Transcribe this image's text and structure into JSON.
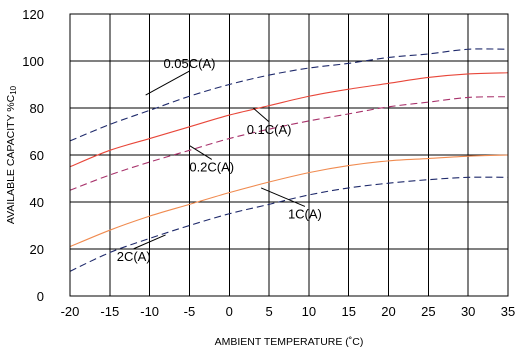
{
  "chart_data": {
    "type": "line",
    "xlabel": "AMBIENT TEMPERATURE (˚C)",
    "ylabel": "AVAILABLE CAPACITY %C",
    "ylabel_subscript": "10",
    "xlim": [
      -20,
      35
    ],
    "ylim": [
      0,
      120
    ],
    "grid": true,
    "x_ticks": [
      -20,
      -15,
      -10,
      -5,
      0,
      5,
      10,
      15,
      20,
      25,
      30,
      35
    ],
    "y_ticks": [
      0,
      20,
      40,
      60,
      80,
      100,
      120
    ],
    "x_tick_labels": [
      "-20",
      "-15",
      "-10",
      "-5",
      "0",
      "5",
      "10",
      "15",
      "20",
      "25",
      "30",
      "35"
    ],
    "y_tick_labels": [
      "0",
      "20",
      "40",
      "60",
      "80",
      "100",
      "120"
    ],
    "x": [
      -20,
      -15,
      -10,
      -5,
      0,
      5,
      10,
      15,
      20,
      25,
      30,
      35
    ],
    "series": [
      {
        "name": "0.05C(A)",
        "color": "#1f2a6b",
        "dash": "dashed",
        "label_at": [
          -5,
          97
        ],
        "anchor": [
          -10.5,
          85.5
        ],
        "values": [
          66,
          73,
          79,
          85,
          90,
          94,
          97,
          99,
          101.5,
          103,
          105,
          105
        ]
      },
      {
        "name": "0.1C(A)",
        "color": "#e8473a",
        "dash": "solid",
        "label_at": [
          5,
          69
        ],
        "anchor": [
          3,
          80
        ],
        "values": [
          55,
          62,
          67,
          72,
          77,
          81,
          85,
          88,
          90.5,
          93,
          94.5,
          95
        ]
      },
      {
        "name": "0.2C(A)",
        "color": "#a8326b",
        "dash": "dashed",
        "label_at": [
          -2.2,
          53
        ],
        "anchor": [
          -5,
          64
        ],
        "values": [
          45,
          51.5,
          57,
          62,
          67,
          71,
          74.5,
          77.5,
          80.5,
          82.5,
          84.5,
          84.8
        ]
      },
      {
        "name": "1C(A)",
        "color": "#f08b50",
        "dash": "solid",
        "label_at": [
          9.5,
          33
        ],
        "anchor": [
          4,
          46
        ],
        "values": [
          21,
          28,
          34,
          39,
          44,
          48.5,
          52.5,
          55.5,
          57.5,
          58.5,
          59.5,
          60
        ]
      },
      {
        "name": "2C(A)",
        "color": "#1f2a6b",
        "dash": "dashed",
        "label_at": [
          -12,
          15
        ],
        "anchor": [
          -8,
          26
        ],
        "values": [
          10.5,
          18.5,
          24.5,
          30,
          35,
          39,
          43,
          46,
          48,
          49.5,
          50.5,
          50.5
        ]
      }
    ]
  }
}
